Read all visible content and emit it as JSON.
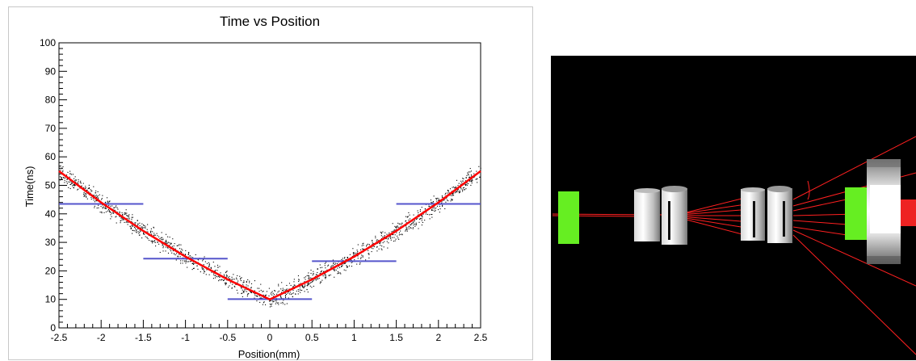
{
  "chart_data": {
    "type": "scatter",
    "title": "Time vs Position",
    "xlabel": "Position(mm)",
    "ylabel": "Time(ns)",
    "xlim": [
      -2.5,
      2.5
    ],
    "ylim": [
      0,
      100
    ],
    "xticks": [
      "-2.5",
      "-2",
      "-1.5",
      "-1",
      "-0.5",
      "0",
      "0.5",
      "1",
      "1.5",
      "2",
      "2.5"
    ],
    "yticks": [
      "0",
      "10",
      "20",
      "30",
      "40",
      "50",
      "60",
      "70",
      "80",
      "90",
      "100"
    ],
    "grid": false,
    "series": [
      {
        "kind": "scatter-points",
        "color": "#000000",
        "note_shape": "V-shaped point cloud around the fit curve, spread about ±4 ns",
        "approx_points": 1500
      },
      {
        "kind": "fit-curve",
        "color": "#ff0000",
        "x": [
          -2.5,
          -2.0,
          -1.5,
          -1.0,
          -0.5,
          0.0,
          0.5,
          1.0,
          1.5,
          2.0,
          2.5
        ],
        "y": [
          55,
          44,
          34,
          25,
          17,
          10,
          17,
          25,
          34,
          44,
          55
        ]
      },
      {
        "kind": "step-bins",
        "color": "#5555cc",
        "bins": [
          {
            "x0": -2.5,
            "x1": -1.5,
            "y": 43.5
          },
          {
            "x0": -1.5,
            "x1": -0.5,
            "y": 24.3
          },
          {
            "x0": -0.5,
            "x1": 0.5,
            "y": 10.1
          },
          {
            "x0": 0.5,
            "x1": 1.5,
            "y": 23.4
          },
          {
            "x0": 1.5,
            "x1": 2.5,
            "y": 43.5
          }
        ]
      }
    ]
  },
  "view": {
    "background": "#000000",
    "colors": {
      "detector": "#66ee22",
      "cylinder": "#e6e6e6",
      "track": "#ff2020",
      "block": "#ee2222"
    }
  }
}
